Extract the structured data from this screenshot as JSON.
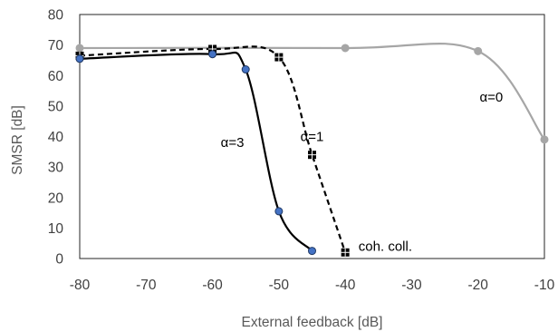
{
  "chart_data": {
    "type": "line",
    "xlabel": "External feedback [dB]",
    "ylabel": "SMSR [dB]",
    "xlim": [
      -80,
      -10
    ],
    "ylim": [
      0,
      80
    ],
    "x_ticks": [
      -80,
      -70,
      -60,
      -50,
      -40,
      -30,
      -20,
      -10
    ],
    "y_ticks": [
      0,
      10,
      20,
      30,
      40,
      50,
      60,
      70,
      80
    ],
    "grid": "none",
    "legend": "none",
    "series": [
      {
        "name": "α=0",
        "color": "#a6a6a6",
        "line": "solid",
        "marker": "circle",
        "points": [
          [
            -80,
            69
          ],
          [
            -40,
            69
          ],
          [
            -20,
            68
          ],
          [
            -10,
            39
          ]
        ]
      },
      {
        "name": "α=1",
        "color": "#000000",
        "line": "dashed",
        "marker": "square",
        "points": [
          [
            -80,
            66.5
          ],
          [
            -60,
            68.7
          ],
          [
            -50,
            66
          ],
          [
            -45,
            34
          ],
          [
            -40,
            2
          ]
        ]
      },
      {
        "name": "α=3",
        "color": "#000000",
        "line": "solid",
        "marker": "circle",
        "marker_fill": "#4472c4",
        "points": [
          [
            -80,
            65.5
          ],
          [
            -60,
            67
          ],
          [
            -55,
            62
          ],
          [
            -50,
            15.5
          ],
          [
            -45,
            2.5
          ]
        ]
      }
    ],
    "annotations": [
      {
        "text": "α=0",
        "x": -18,
        "y": 53
      },
      {
        "text": "α=1",
        "x": -45,
        "y": 40
      },
      {
        "text": "α=3",
        "x": -57,
        "y": 38
      },
      {
        "text": "coh. coll.",
        "x": -38,
        "y": 4
      }
    ]
  }
}
